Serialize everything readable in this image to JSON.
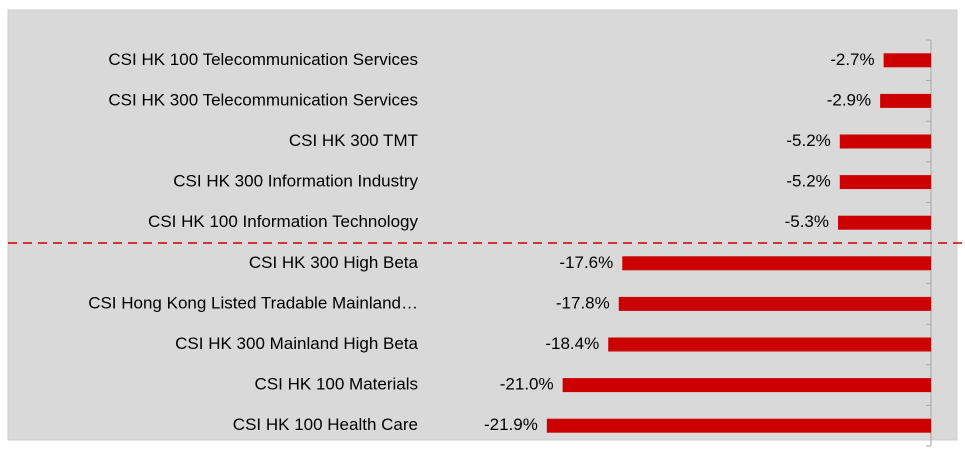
{
  "chart_data": {
    "type": "bar",
    "orientation": "horizontal",
    "categories": [
      "CSI HK 100 Telecommunication Services",
      "CSI HK 300 Telecommunication Services",
      "CSI HK 300 TMT",
      "CSI HK 300 Information Industry",
      "CSI HK 100 Information Technology",
      "CSI HK 300 High Beta",
      "CSI Hong Kong Listed Tradable Mainland…",
      "CSI HK 300 Mainland High Beta",
      "CSI HK 100 Materials",
      "CSI HK 100 Health Care"
    ],
    "values": [
      -2.7,
      -2.9,
      -5.2,
      -5.2,
      -5.3,
      -17.6,
      -17.8,
      -18.4,
      -21.0,
      -21.9
    ],
    "value_labels": [
      "-2.7%",
      "-2.9%",
      "-5.2%",
      "-5.2%",
      "-5.3%",
      "-17.6%",
      "-17.8%",
      "-18.4%",
      "-21.0%",
      "-21.9%"
    ],
    "color": "#cc0000",
    "xlim": [
      -24,
      0
    ]
  }
}
